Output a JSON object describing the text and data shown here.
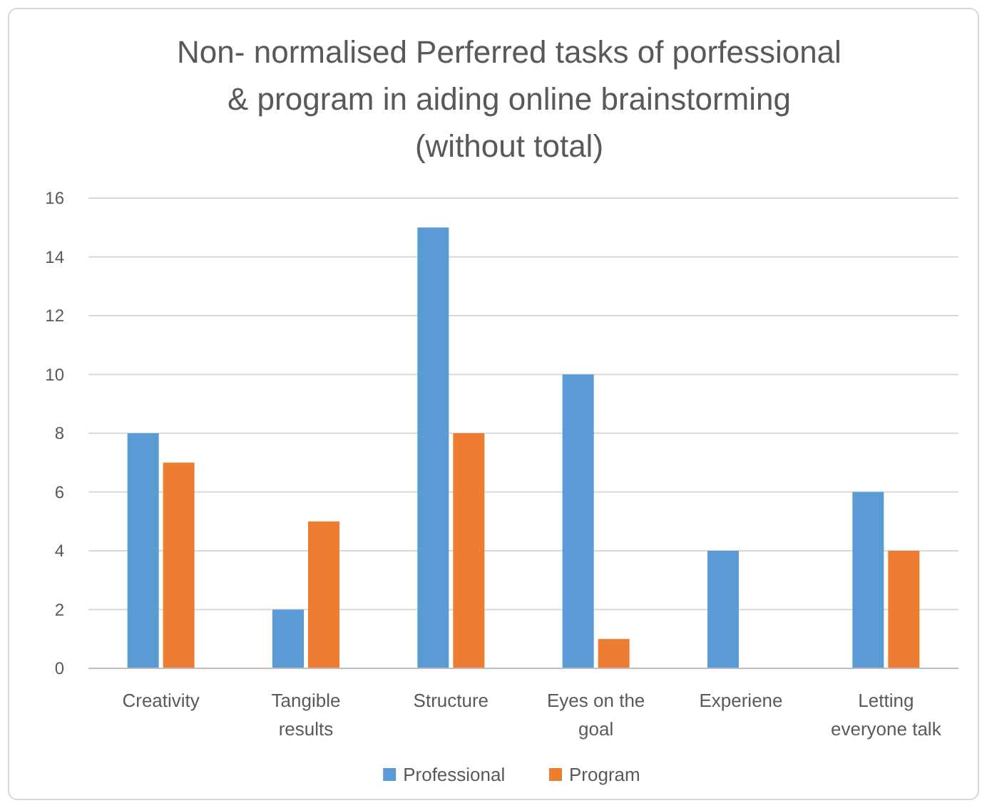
{
  "chart_data": {
    "type": "bar",
    "title": "Non- normalised  Perferred tasks of porfessional\n& program in aiding online brainstorming\n(without total)",
    "categories": [
      "Creativity",
      "Tangible results",
      "Structure",
      "Eyes on the goal",
      "Experiene",
      "Letting everyone talk"
    ],
    "series": [
      {
        "name": "Professional",
        "color": "#5b9bd5",
        "values": [
          8,
          2,
          15,
          10,
          4,
          6
        ]
      },
      {
        "name": "Program",
        "color": "#ed7d31",
        "values": [
          7,
          5,
          8,
          1,
          0,
          4
        ]
      }
    ],
    "ylim": [
      0,
      16
    ],
    "yticks": [
      0,
      2,
      4,
      6,
      8,
      10,
      12,
      14,
      16
    ],
    "grid": "y",
    "legend": "bottom"
  }
}
